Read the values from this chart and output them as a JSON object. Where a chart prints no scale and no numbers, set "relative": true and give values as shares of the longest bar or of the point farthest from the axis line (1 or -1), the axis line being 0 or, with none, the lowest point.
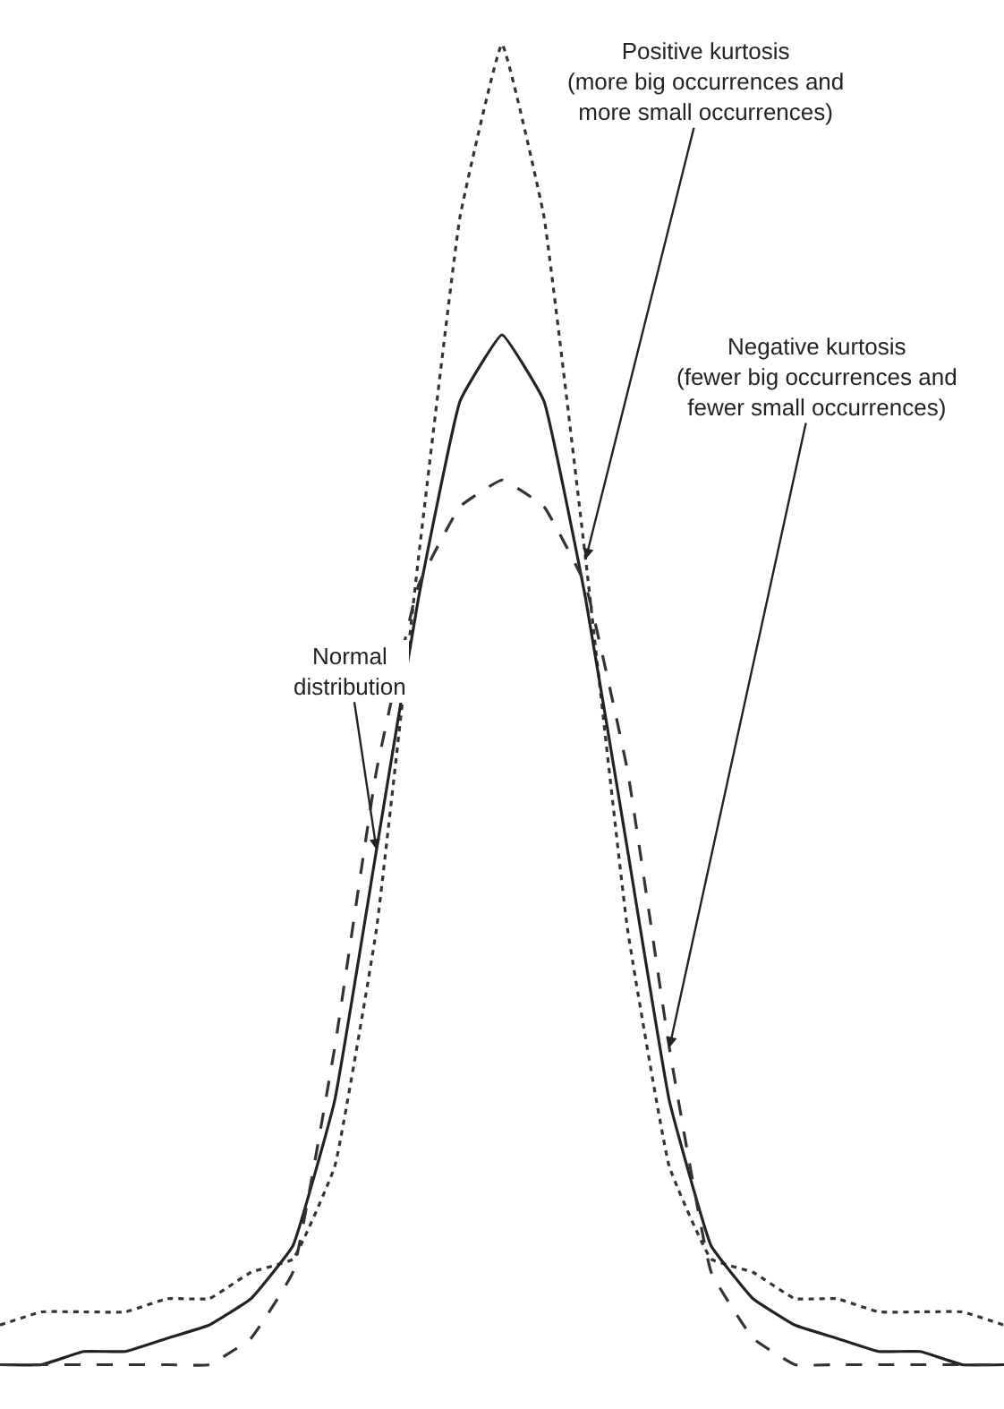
{
  "chart_data": {
    "type": "line",
    "relative": true,
    "legend": false,
    "categories": [
      null,
      null,
      null,
      null,
      null,
      null,
      null,
      null,
      null,
      null,
      null,
      null,
      null,
      null,
      null,
      null,
      null,
      null,
      null,
      null,
      null,
      null,
      null,
      null,
      null
    ],
    "series": [
      {
        "name": "Positive kurtosis\n(more big occurrences and\nmore small occurrences)",
        "color": "#333333",
        "line_style": "dotted",
        "values": [
          0.03,
          0.04,
          0.04,
          0.04,
          0.05,
          0.05,
          0.07,
          0.08,
          0.15,
          0.33,
          0.61,
          0.87,
          1,
          0.87,
          0.61,
          0.33,
          0.15,
          0.08,
          0.07,
          0.05,
          0.05,
          0.04,
          0.04,
          0.04,
          0.03
        ]
      },
      {
        "name": "Normal\ndistribution",
        "color": "#222222",
        "line_style": "solid",
        "values": [
          0,
          0,
          0.01,
          0.01,
          0.02,
          0.03,
          0.05,
          0.09,
          0.2,
          0.39,
          0.58,
          0.73,
          0.78,
          0.73,
          0.58,
          0.39,
          0.2,
          0.09,
          0.05,
          0.03,
          0.02,
          0.01,
          0.01,
          0,
          0
        ]
      },
      {
        "name": "Negative kurtosis\n(fewer big occurrences and\nfewer small occurrences)",
        "color": "#333333",
        "line_style": "dashed",
        "values": [
          0,
          0,
          0,
          0,
          0,
          0,
          0.02,
          0.07,
          0.24,
          0.45,
          0.59,
          0.65,
          0.67,
          0.65,
          0.59,
          0.45,
          0.24,
          0.07,
          0.02,
          0,
          0,
          0,
          0,
          0,
          0
        ]
      }
    ]
  }
}
